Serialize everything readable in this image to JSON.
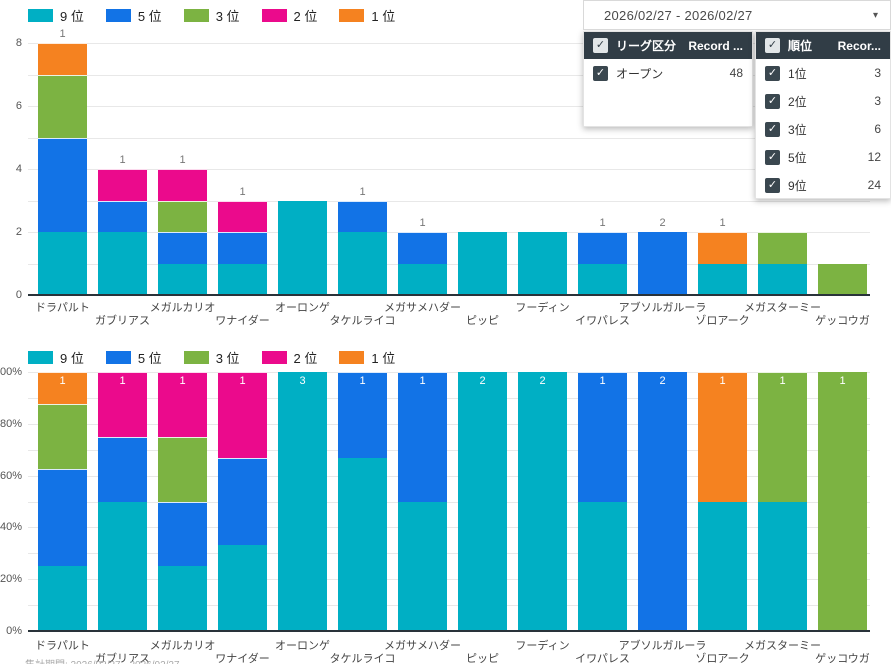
{
  "header": {
    "date_range": "2026/02/27 - 2026/02/27"
  },
  "filter_panels": {
    "league": {
      "title": "リーグ区分",
      "count_header": "Record ...",
      "rows": [
        {
          "label": "オープン",
          "count": "48",
          "checked": true
        }
      ]
    },
    "rank": {
      "title": "順位",
      "count_header": "Recor...",
      "rows": [
        {
          "label": "1位",
          "count": "3",
          "checked": true
        },
        {
          "label": "2位",
          "count": "3",
          "checked": true
        },
        {
          "label": "3位",
          "count": "6",
          "checked": true
        },
        {
          "label": "5位",
          "count": "12",
          "checked": true
        },
        {
          "label": "9位",
          "count": "24",
          "checked": true
        }
      ]
    }
  },
  "colors": {
    "rank9": "#00afc4",
    "rank5": "#1273e6",
    "rank3": "#7cb342",
    "rank2": "#eb0a8c",
    "rank1": "#f58220",
    "panel_header": "#313d46"
  },
  "legend_items": [
    {
      "label": "9 位",
      "color_key": "rank9"
    },
    {
      "label": "5 位",
      "color_key": "rank5"
    },
    {
      "label": "3 位",
      "color_key": "rank3"
    },
    {
      "label": "2 位",
      "color_key": "rank2"
    },
    {
      "label": "1 位",
      "color_key": "rank1"
    }
  ],
  "footnote": "集計期間: 2026/02/27 - 2026/02/27",
  "chart_data": [
    {
      "type": "bar",
      "stacked": true,
      "value_mode": "count",
      "title": "",
      "categories": [
        "ドラパルト",
        "ガブリアス",
        "メガルカリオ",
        "ワナイダー",
        "オーロンゲ",
        "タケルライコ",
        "メガサメハダー",
        "ピッピ",
        "フーディン",
        "イワパレス",
        "アブソルガルーラ",
        "ゾロアーク",
        "メガスターミー",
        "ゲッコウガ"
      ],
      "series": [
        {
          "name": "9位",
          "color_key": "rank9",
          "values": [
            2,
            2,
            1,
            1,
            3,
            2,
            1,
            2,
            2,
            1,
            0,
            1,
            1,
            0
          ]
        },
        {
          "name": "5位",
          "color_key": "rank5",
          "values": [
            3,
            1,
            1,
            1,
            0,
            1,
            1,
            0,
            0,
            1,
            2,
            0,
            0,
            0
          ]
        },
        {
          "name": "3位",
          "color_key": "rank3",
          "values": [
            2,
            0,
            1,
            0,
            0,
            0,
            0,
            0,
            0,
            0,
            0,
            0,
            1,
            1
          ]
        },
        {
          "name": "2位",
          "color_key": "rank2",
          "values": [
            0,
            1,
            1,
            1,
            0,
            0,
            0,
            0,
            0,
            0,
            0,
            0,
            0,
            0
          ]
        },
        {
          "name": "1位",
          "color_key": "rank1",
          "values": [
            1,
            0,
            0,
            0,
            0,
            0,
            0,
            0,
            0,
            0,
            0,
            1,
            0,
            0
          ]
        }
      ],
      "ylim": [
        0,
        8
      ],
      "ytick_values": [
        0,
        2,
        4,
        6,
        8
      ],
      "ytick_labels": [
        "0",
        "2",
        "4",
        "6",
        "8"
      ],
      "grid_step": 1,
      "legend_position": "top",
      "label_rule": "segments labeled at their top edge; topmost segment labeled above bar only for 5位/2位/1位"
    },
    {
      "type": "bar",
      "stacked": true,
      "value_mode": "percent",
      "title": "",
      "categories": [
        "ドラパルト",
        "ガブリアス",
        "メガルカリオ",
        "ワナイダー",
        "オーロンゲ",
        "タケルライコ",
        "メガサメハダー",
        "ピッピ",
        "フーディン",
        "イワパレス",
        "アブソルガルーラ",
        "ゾロアーク",
        "メガスターミー",
        "ゲッコウガ"
      ],
      "series": [
        {
          "name": "9位",
          "color_key": "rank9",
          "values": [
            2,
            2,
            1,
            1,
            3,
            2,
            1,
            2,
            2,
            1,
            0,
            1,
            1,
            0
          ]
        },
        {
          "name": "5位",
          "color_key": "rank5",
          "values": [
            3,
            1,
            1,
            1,
            0,
            1,
            1,
            0,
            0,
            1,
            2,
            0,
            0,
            0
          ]
        },
        {
          "name": "3位",
          "color_key": "rank3",
          "values": [
            2,
            0,
            1,
            0,
            0,
            0,
            0,
            0,
            0,
            0,
            0,
            0,
            1,
            1
          ]
        },
        {
          "name": "2位",
          "color_key": "rank2",
          "values": [
            0,
            1,
            1,
            1,
            0,
            0,
            0,
            0,
            0,
            0,
            0,
            0,
            0,
            0
          ]
        },
        {
          "name": "1位",
          "color_key": "rank1",
          "values": [
            1,
            0,
            0,
            0,
            0,
            0,
            0,
            0,
            0,
            0,
            0,
            1,
            0,
            0
          ]
        }
      ],
      "ylim": [
        0,
        100
      ],
      "ytick_values": [
        0,
        20,
        40,
        60,
        80,
        100
      ],
      "ytick_labels": [
        "0%",
        "20%",
        "40%",
        "60%",
        "80%",
        "100%"
      ],
      "grid_step": 10,
      "legend_position": "top",
      "label_rule": "every segment labeled with its count at segment top edge"
    }
  ]
}
